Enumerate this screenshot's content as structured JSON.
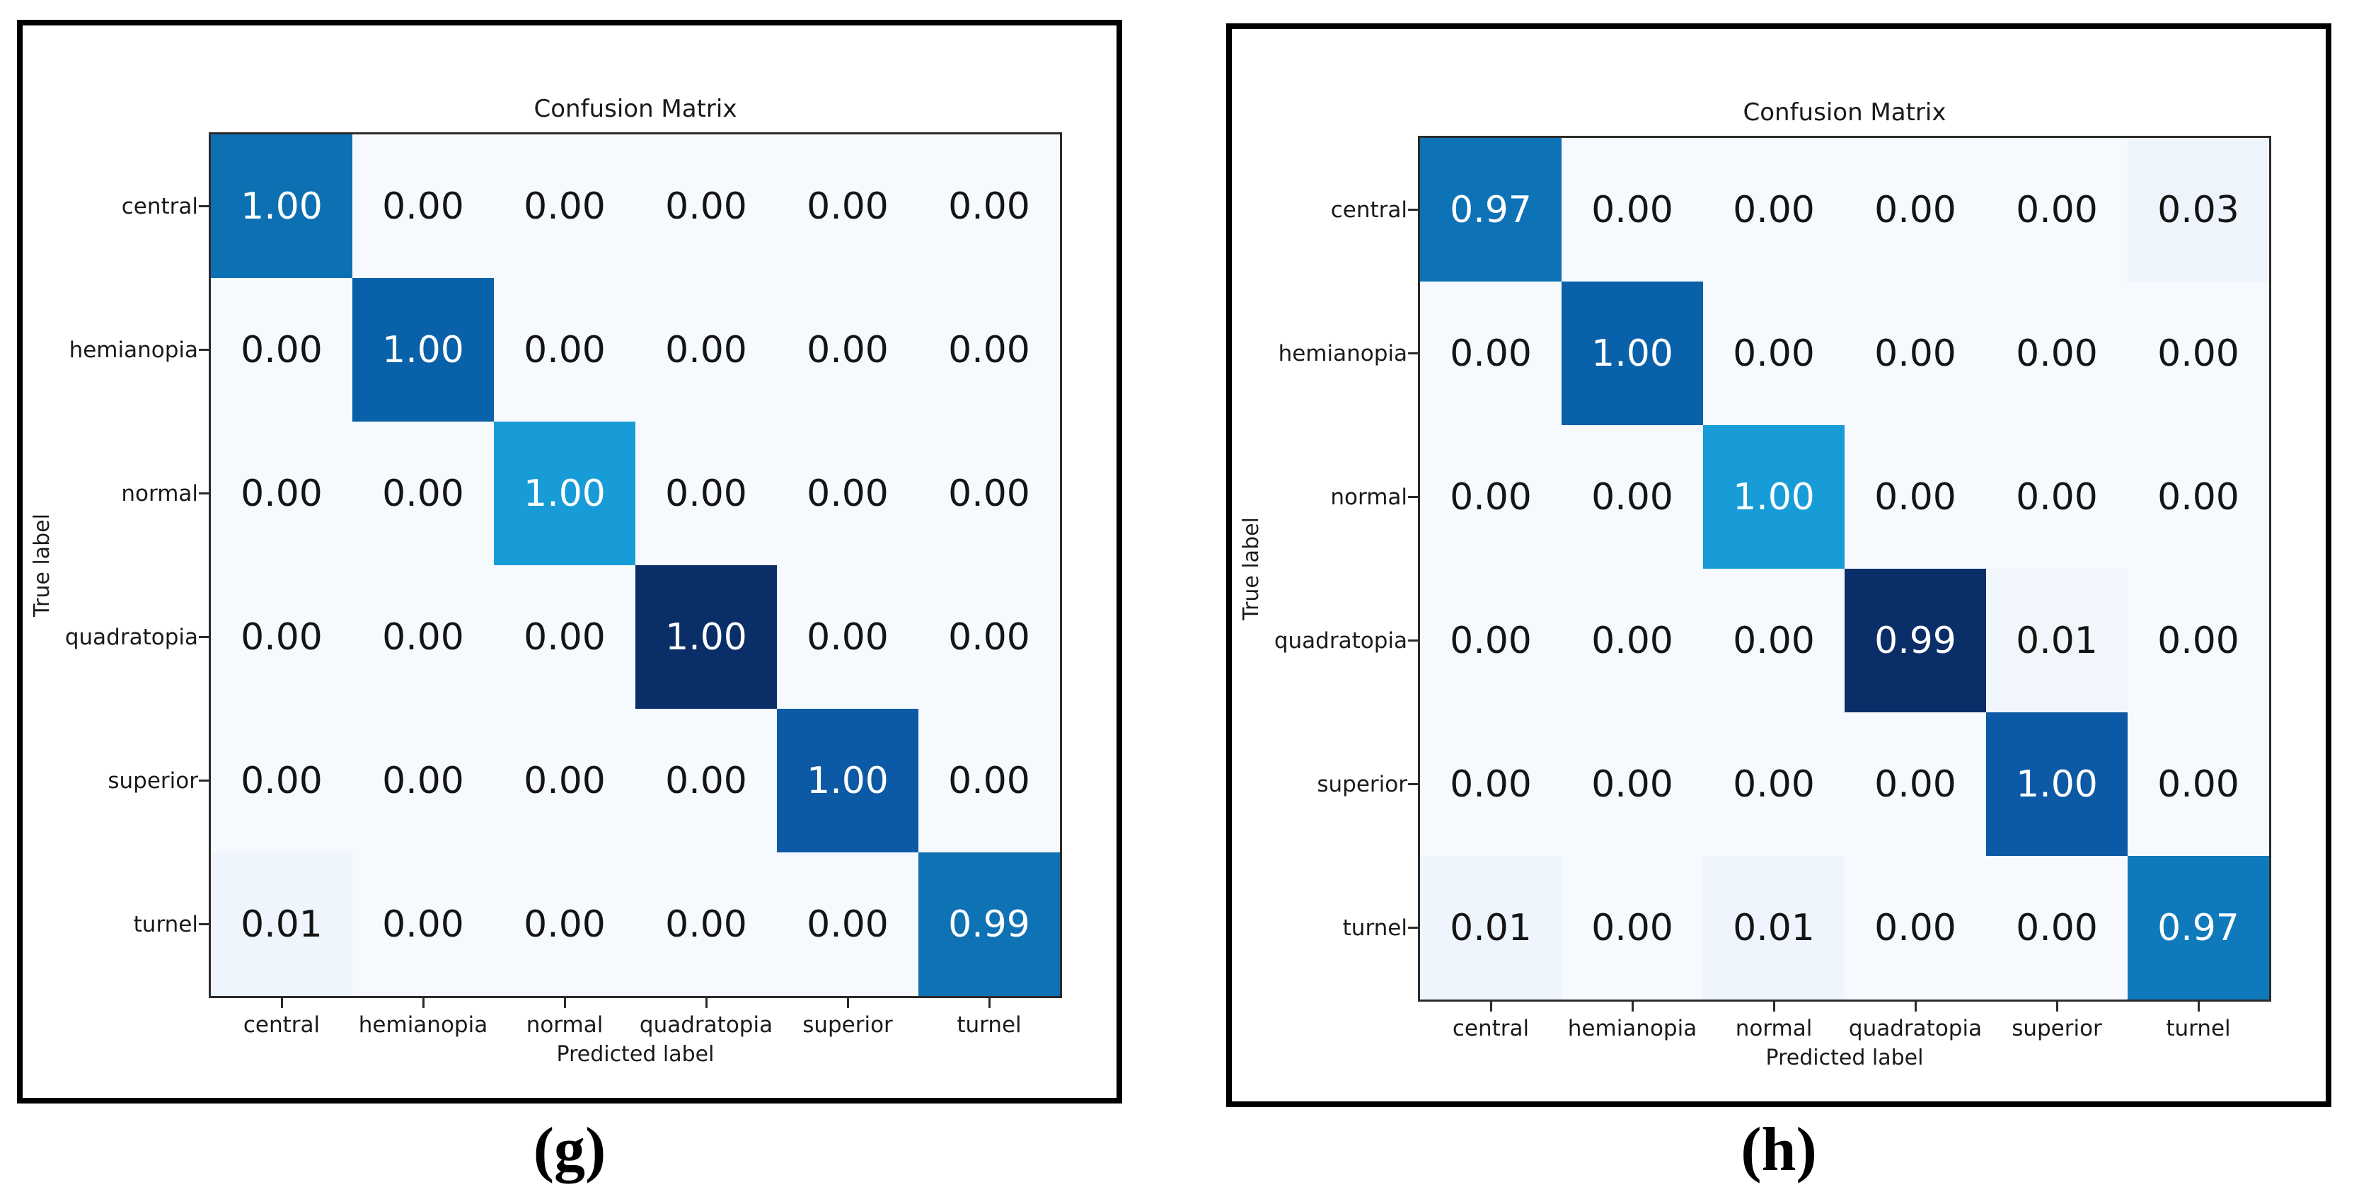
{
  "panels": [
    {
      "id": "g",
      "title": "Confusion Matrix",
      "xlabel": "Predicted label",
      "ylabel": "True label",
      "caption": "(g)",
      "labels": [
        "central",
        "hemianopia",
        "normal",
        "quadratopia",
        "superior",
        "turnel"
      ],
      "matrix": [
        [
          "1.00",
          "0.00",
          "0.00",
          "0.00",
          "0.00",
          "0.00"
        ],
        [
          "0.00",
          "1.00",
          "0.00",
          "0.00",
          "0.00",
          "0.00"
        ],
        [
          "0.00",
          "0.00",
          "1.00",
          "0.00",
          "0.00",
          "0.00"
        ],
        [
          "0.00",
          "0.00",
          "0.00",
          "1.00",
          "0.00",
          "0.00"
        ],
        [
          "0.00",
          "0.00",
          "0.00",
          "0.00",
          "1.00",
          "0.00"
        ],
        [
          "0.01",
          "0.00",
          "0.00",
          "0.00",
          "0.00",
          "0.99"
        ]
      ],
      "cell_colors": [
        [
          "#0d70b2",
          "#f6fafe",
          "#f6fafe",
          "#f6fafe",
          "#f6fafe",
          "#f6fafe"
        ],
        [
          "#f6fafe",
          "#0961a9",
          "#f6fafe",
          "#f6fafe",
          "#f6fafe",
          "#f6fafe"
        ],
        [
          "#f6fafe",
          "#f6fafe",
          "#189cd8",
          "#f6fafe",
          "#f6fafe",
          "#f6fafe"
        ],
        [
          "#f6fafe",
          "#f6fafe",
          "#f6fafe",
          "#0a2e68",
          "#f6fafe",
          "#f6fafe"
        ],
        [
          "#f6fafe",
          "#f6fafe",
          "#f6fafe",
          "#f6fafe",
          "#0c59a5",
          "#f6fafe"
        ],
        [
          "#eff5fc",
          "#f6fafe",
          "#f6fafe",
          "#f6fafe",
          "#f6fafe",
          "#0e72b4"
        ]
      ],
      "diag_text_color": "#ffffff",
      "offdiag_text_color": "#141414"
    },
    {
      "id": "h",
      "title": "Confusion Matrix",
      "xlabel": "Predicted label",
      "ylabel": "True label",
      "caption": "(h)",
      "labels": [
        "central",
        "hemianopia",
        "normal",
        "quadratopia",
        "superior",
        "turnel"
      ],
      "matrix": [
        [
          "0.97",
          "0.00",
          "0.00",
          "0.00",
          "0.00",
          "0.03"
        ],
        [
          "0.00",
          "1.00",
          "0.00",
          "0.00",
          "0.00",
          "0.00"
        ],
        [
          "0.00",
          "0.00",
          "1.00",
          "0.00",
          "0.00",
          "0.00"
        ],
        [
          "0.00",
          "0.00",
          "0.00",
          "0.99",
          "0.01",
          "0.00"
        ],
        [
          "0.00",
          "0.00",
          "0.00",
          "0.00",
          "1.00",
          "0.00"
        ],
        [
          "0.01",
          "0.00",
          "0.01",
          "0.00",
          "0.00",
          "0.97"
        ]
      ],
      "cell_colors": [
        [
          "#0d72b6",
          "#f6fafe",
          "#f6fafe",
          "#f6fafe",
          "#f6fafe",
          "#edf4fb"
        ],
        [
          "#f6fafe",
          "#0961a9",
          "#f6fafe",
          "#f6fafe",
          "#f6fafe",
          "#f6fafe"
        ],
        [
          "#f6fafe",
          "#f6fafe",
          "#189cd8",
          "#f6fafe",
          "#f6fafe",
          "#f6fafe"
        ],
        [
          "#f6fafe",
          "#f6fafe",
          "#f6fafe",
          "#0a2e68",
          "#f0f6fc",
          "#f6fafe"
        ],
        [
          "#f6fafe",
          "#f6fafe",
          "#f6fafe",
          "#f6fafe",
          "#0c59a5",
          "#f6fafe"
        ],
        [
          "#eff5fc",
          "#f6fafe",
          "#eff5fc",
          "#f6fafe",
          "#f6fafe",
          "#0f7abb"
        ]
      ],
      "diag_text_color": "#ffffff",
      "offdiag_text_color": "#141414"
    }
  ],
  "chart_data": [
    {
      "type": "heatmap",
      "title": "Confusion Matrix",
      "xlabel": "Predicted label",
      "ylabel": "True label",
      "caption": "(g)",
      "x_categories": [
        "central",
        "hemianopia",
        "normal",
        "quadratopia",
        "superior",
        "turnel"
      ],
      "y_categories": [
        "central",
        "hemianopia",
        "normal",
        "quadratopia",
        "superior",
        "turnel"
      ],
      "values": [
        [
          1.0,
          0.0,
          0.0,
          0.0,
          0.0,
          0.0
        ],
        [
          0.0,
          1.0,
          0.0,
          0.0,
          0.0,
          0.0
        ],
        [
          0.0,
          0.0,
          1.0,
          0.0,
          0.0,
          0.0
        ],
        [
          0.0,
          0.0,
          0.0,
          1.0,
          0.0,
          0.0
        ],
        [
          0.0,
          0.0,
          0.0,
          0.0,
          1.0,
          0.0
        ],
        [
          0.01,
          0.0,
          0.0,
          0.0,
          0.0,
          0.99
        ]
      ],
      "value_range": [
        0,
        1
      ],
      "colormap": "Blues",
      "legend": "none",
      "grid": false
    },
    {
      "type": "heatmap",
      "title": "Confusion Matrix",
      "xlabel": "Predicted label",
      "ylabel": "True label",
      "caption": "(h)",
      "x_categories": [
        "central",
        "hemianopia",
        "normal",
        "quadratopia",
        "superior",
        "turnel"
      ],
      "y_categories": [
        "central",
        "hemianopia",
        "normal",
        "quadratopia",
        "superior",
        "turnel"
      ],
      "values": [
        [
          0.97,
          0.0,
          0.0,
          0.0,
          0.0,
          0.03
        ],
        [
          0.0,
          1.0,
          0.0,
          0.0,
          0.0,
          0.0
        ],
        [
          0.0,
          0.0,
          1.0,
          0.0,
          0.0,
          0.0
        ],
        [
          0.0,
          0.0,
          0.0,
          0.99,
          0.01,
          0.0
        ],
        [
          0.0,
          0.0,
          0.0,
          0.0,
          1.0,
          0.0
        ],
        [
          0.01,
          0.0,
          0.01,
          0.0,
          0.0,
          0.97
        ]
      ],
      "value_range": [
        0,
        1
      ],
      "colormap": "Blues",
      "legend": "none",
      "grid": false
    }
  ]
}
